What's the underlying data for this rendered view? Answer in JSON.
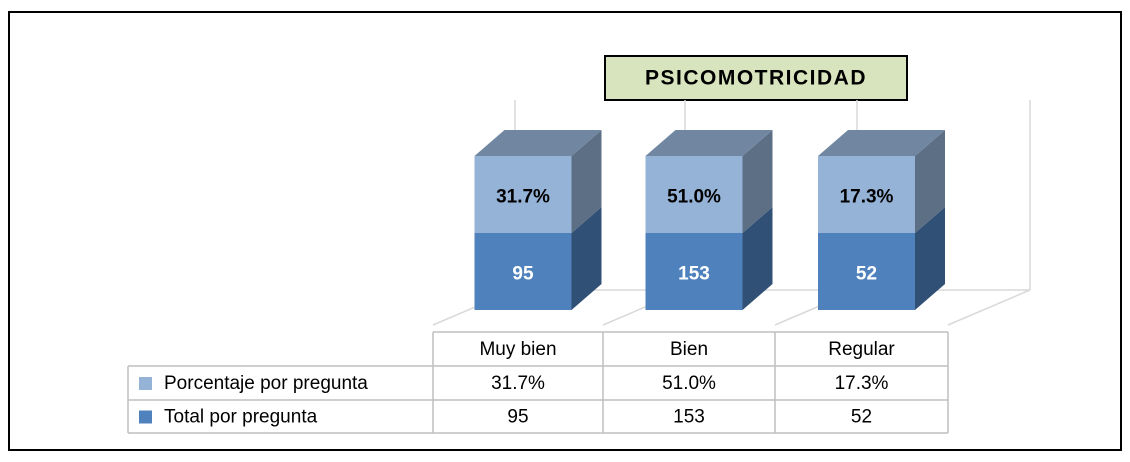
{
  "chart_data": {
    "type": "stacked-3d-column",
    "title": "PSICOMOTRICIDAD",
    "categories": [
      "Muy bien",
      "Bien",
      "Regular"
    ],
    "series": [
      {
        "name": "Total por pregunta",
        "color": "#4f81bd",
        "values": [
          95,
          153,
          52
        ]
      },
      {
        "name": "Porcentaje por pregunta",
        "color": "#95b3d7",
        "values": [
          31.7,
          51.0,
          17.3
        ],
        "value_labels": [
          "31.7%",
          "51.0%",
          "17.3%"
        ]
      }
    ],
    "data_table": true
  }
}
